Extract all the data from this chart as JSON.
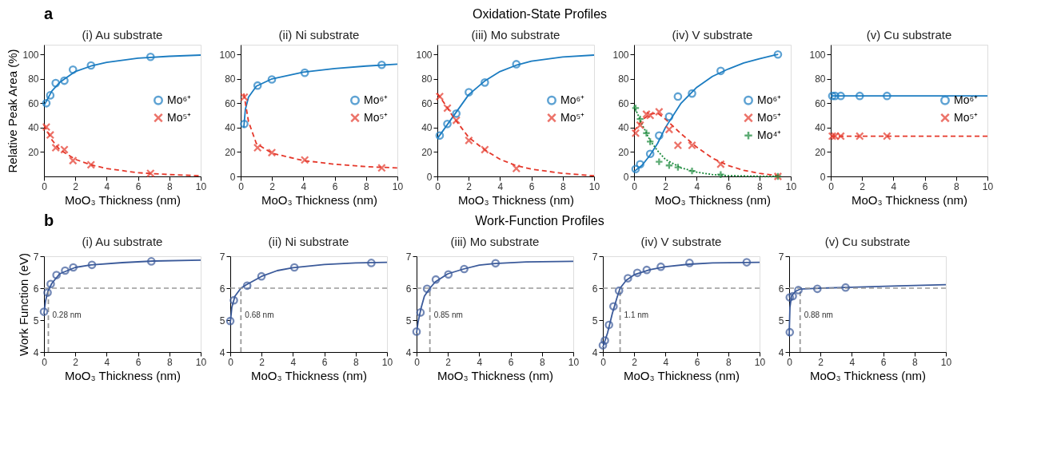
{
  "chart_data": [
    {
      "type": "scatter",
      "title": "(i) Au substrate",
      "xlabel": "MoO₃ Thickness (nm)",
      "ylabel": "Relative Peak Area (%)",
      "annotations": [
        "a",
        "Oxidation-State Profiles"
      ],
      "xlim": [
        0,
        10
      ],
      "ylim": [
        0,
        108
      ],
      "xticks": [
        0,
        2,
        4,
        6,
        8,
        10
      ],
      "yticks": [
        20,
        40,
        60,
        80,
        100
      ],
      "legend": "right",
      "series": [
        {
          "name": "Mo⁶⁺",
          "marker": "circle",
          "color": "#1b7cc1",
          "x": [
            0.15,
            0.4,
            0.75,
            1.3,
            1.85,
            3.0,
            6.8
          ],
          "values": [
            60,
            66.5,
            76.5,
            78.5,
            87.5,
            91,
            98
          ]
        },
        {
          "name": "Mo⁵⁺",
          "marker": "x",
          "color": "#e5382b",
          "x": [
            0.15,
            0.4,
            0.75,
            1.3,
            1.85,
            3.0,
            6.8
          ],
          "values": [
            40.5,
            34,
            23.5,
            22,
            13,
            9.5,
            2.5
          ]
        },
        {
          "type": "line",
          "line_style": "solid",
          "color": "#1b7cc1",
          "x": [
            0,
            0.5,
            1,
            2,
            3,
            4,
            6,
            8,
            10
          ],
          "values": [
            58,
            70,
            77,
            86,
            90.5,
            93.5,
            97,
            98.5,
            99.5
          ]
        },
        {
          "type": "line",
          "line_style": "dashed",
          "color": "#e5382b",
          "x": [
            0,
            0.5,
            1,
            2,
            3,
            4,
            6,
            8,
            10
          ],
          "values": [
            42,
            30,
            22,
            14,
            9.5,
            6.5,
            3,
            1.5,
            0.5
          ]
        }
      ]
    },
    {
      "type": "scatter",
      "title": "(ii) Ni substrate",
      "xlabel": "MoO₃ Thickness (nm)",
      "xlim": [
        0,
        10
      ],
      "ylim": [
        0,
        108
      ],
      "xticks": [
        0,
        2,
        4,
        6,
        8,
        10
      ],
      "yticks": [
        0,
        20,
        40,
        60,
        80,
        100
      ],
      "legend": "right",
      "series": [
        {
          "name": "Mo⁶⁺",
          "marker": "circle",
          "color": "#1b7cc1",
          "x": [
            0.23,
            1.08,
            1.99,
            4.09,
            9.0
          ],
          "values": [
            43,
            74.5,
            79.5,
            85,
            91.5
          ]
        },
        {
          "name": "Mo⁵⁺",
          "marker": "x",
          "color": "#e5382b",
          "x": [
            0.23,
            1.08,
            1.99,
            4.09,
            9.0
          ],
          "values": [
            65,
            23.5,
            19.5,
            13.5,
            7
          ]
        },
        {
          "type": "line",
          "line_style": "solid",
          "color": "#1b7cc1",
          "x": [
            0.2,
            0.3,
            0.5,
            1,
            2,
            4,
            6,
            8,
            10
          ],
          "values": [
            40,
            55,
            65,
            74,
            80,
            85.5,
            88.5,
            90.5,
            92
          ]
        },
        {
          "type": "line",
          "line_style": "dashed",
          "color": "#e5382b",
          "x": [
            0.2,
            0.5,
            1,
            2,
            4,
            6,
            8,
            10
          ],
          "values": [
            68,
            45,
            27,
            19,
            13,
            10,
            8,
            7
          ]
        }
      ]
    },
    {
      "type": "scatter",
      "title": "(iii) Mo substrate",
      "xlabel": "MoO₃ Thickness (nm)",
      "xlim": [
        0,
        10
      ],
      "ylim": [
        0,
        108
      ],
      "xticks": [
        0,
        2,
        4,
        6,
        8,
        10
      ],
      "yticks": [
        0,
        20,
        40,
        60,
        80,
        100
      ],
      "legend": "right",
      "series": [
        {
          "name": "Mo⁶⁺",
          "marker": "circle",
          "color": "#1b7cc1",
          "x": [
            0.15,
            0.64,
            1.21,
            2.01,
            3.03,
            5.04
          ],
          "values": [
            33.5,
            43,
            51.5,
            69,
            77,
            92
          ]
        },
        {
          "name": "Mo⁵⁺",
          "marker": "x",
          "color": "#e5382b",
          "x": [
            0.15,
            0.64,
            1.21,
            2.01,
            3.03,
            5.04
          ],
          "values": [
            65.5,
            56,
            46,
            29.5,
            22,
            6.5
          ]
        },
        {
          "type": "line",
          "line_style": "solid",
          "color": "#1b7cc1",
          "x": [
            0,
            0.5,
            1,
            2,
            3,
            4,
            5,
            6,
            8,
            10
          ],
          "values": [
            31,
            40,
            49,
            67,
            78,
            86,
            91,
            94.5,
            98,
            99.5
          ]
        },
        {
          "type": "line",
          "line_style": "dashed",
          "color": "#e5382b",
          "x": [
            0,
            0.5,
            1,
            2,
            3,
            4,
            5,
            6,
            8,
            10
          ],
          "values": [
            68,
            59,
            49,
            32,
            22,
            14,
            9,
            6,
            2.5,
            0.5
          ]
        }
      ]
    },
    {
      "type": "scatter",
      "title": "(iv) V substrate",
      "xlabel": "MoO₃ Thickness (nm)",
      "xlim": [
        0,
        10
      ],
      "ylim": [
        0,
        108
      ],
      "xticks": [
        0,
        2,
        4,
        6,
        8,
        10
      ],
      "yticks": [
        0,
        20,
        40,
        60,
        80,
        100
      ],
      "legend": "right",
      "series": [
        {
          "name": "Mo⁶⁺",
          "marker": "circle",
          "color": "#1b7cc1",
          "x": [
            0.1,
            0.39,
            1.03,
            1.6,
            2.24,
            2.8,
            3.7,
            5.53,
            9.18
          ],
          "values": [
            6,
            10,
            18.5,
            33.5,
            49,
            65.5,
            68,
            86.5,
            100
          ]
        },
        {
          "name": "Mo⁵⁺",
          "marker": "x",
          "color": "#e5382b",
          "x": [
            0.1,
            0.39,
            0.79,
            1.03,
            1.6,
            2.24,
            2.8,
            3.7,
            5.53,
            9.18
          ],
          "values": [
            35.5,
            42,
            51,
            50,
            53,
            38.5,
            25.5,
            25.5,
            10,
            0
          ]
        },
        {
          "name": "Mo⁴⁺",
          "marker": "cross",
          "color": "#1b8a3c",
          "x": [
            0.1,
            0.39,
            0.79,
            1.03,
            1.6,
            2.24,
            2.8,
            3.7,
            5.53,
            9.18
          ],
          "values": [
            56,
            47,
            35.5,
            28.5,
            12,
            9,
            7.5,
            4.5,
            1.5,
            0
          ]
        },
        {
          "type": "line",
          "line_style": "solid",
          "color": "#1b7cc1",
          "x": [
            0,
            0.5,
            1,
            1.5,
            2,
            3,
            4,
            5,
            6,
            7,
            8,
            9,
            9.2
          ],
          "values": [
            4,
            9,
            17,
            27,
            40,
            60,
            73,
            82,
            88,
            93,
            96.5,
            99.5,
            100
          ]
        },
        {
          "type": "line",
          "line_style": "dashed",
          "color": "#e5382b",
          "x": [
            0,
            0.5,
            1,
            1.5,
            2,
            3,
            4,
            5,
            6,
            7,
            8,
            9.2
          ],
          "values": [
            37,
            46,
            51,
            52,
            47,
            35,
            24,
            15,
            9,
            5,
            2.5,
            0.5
          ]
        },
        {
          "type": "line",
          "line_style": "dotted",
          "color": "#1b8a3c",
          "x": [
            0,
            0.5,
            1,
            1.5,
            2,
            3,
            4,
            5,
            6,
            8,
            9.2
          ],
          "values": [
            58,
            43,
            30,
            21,
            14,
            7,
            3.5,
            1.5,
            0.6,
            0.1,
            0
          ]
        }
      ]
    },
    {
      "type": "scatter",
      "title": "(v) Cu substrate",
      "xlabel": "MoO₃ Thickness (nm)",
      "xlim": [
        0,
        10
      ],
      "ylim": [
        0,
        108
      ],
      "xticks": [
        0,
        2,
        4,
        6,
        8,
        10
      ],
      "yticks": [
        0,
        20,
        40,
        60,
        80,
        100
      ],
      "legend": "right",
      "series": [
        {
          "name": "Mo⁶⁺",
          "marker": "circle",
          "color": "#1b7cc1",
          "x": [
            0.1,
            0.28,
            0.64,
            1.85,
            3.59
          ],
          "values": [
            66,
            66,
            66,
            66,
            66
          ]
        },
        {
          "name": "Mo⁵⁺",
          "marker": "x",
          "color": "#e5382b",
          "x": [
            0.1,
            0.28,
            0.64,
            1.85,
            3.59
          ],
          "values": [
            33,
            33,
            33,
            33,
            33
          ]
        },
        {
          "type": "line",
          "line_style": "solid",
          "color": "#1b7cc1",
          "x": [
            0,
            10
          ],
          "values": [
            66,
            66
          ]
        },
        {
          "type": "line",
          "line_style": "dashed",
          "color": "#e5382b",
          "x": [
            0,
            10
          ],
          "values": [
            33,
            33
          ]
        }
      ]
    },
    {
      "type": "scatter",
      "title": "(i) Au substrate",
      "xlabel": "MoO₃ Thickness (nm)",
      "ylabel": "Work Function (eV)",
      "annotations": [
        "b",
        "Work-Function Profiles",
        "0.28 nm"
      ],
      "xlim": [
        0,
        10
      ],
      "ylim": [
        4,
        7
      ],
      "xticks": [
        0,
        2,
        4,
        6,
        8,
        10
      ],
      "yticks": [
        4,
        5,
        6,
        7
      ],
      "ref_lines": [
        {
          "axis": "y",
          "value": 6,
          "color": "#999999",
          "line_style": "dashed"
        }
      ],
      "series": [
        {
          "marker": "circle",
          "color": "#3b5a9a",
          "x": [
            0,
            0.23,
            0.43,
            0.8,
            1.35,
            1.87,
            3.06,
            6.85
          ],
          "values": [
            5.26,
            5.86,
            6.13,
            6.41,
            6.55,
            6.65,
            6.73,
            6.84
          ]
        },
        {
          "type": "line",
          "line_style": "solid",
          "color": "#3b5a9a",
          "x": [
            0,
            0.1,
            0.25,
            0.5,
            1,
            2,
            3,
            5,
            7,
            10
          ],
          "values": [
            5.2,
            5.6,
            5.9,
            6.15,
            6.45,
            6.65,
            6.73,
            6.8,
            6.85,
            6.88
          ]
        },
        {
          "type": "line",
          "line_style": "dashed",
          "color": "#999999",
          "x": [
            0.28,
            0.28
          ],
          "values": [
            4,
            6
          ]
        }
      ]
    },
    {
      "type": "scatter",
      "title": "(ii) Ni substrate",
      "xlabel": "MoO₃ Thickness (nm)",
      "annotations": [
        "0.68 nm"
      ],
      "xlim": [
        0,
        10
      ],
      "ylim": [
        4,
        7
      ],
      "xticks": [
        0,
        2,
        4,
        6,
        8,
        10
      ],
      "yticks": [
        4,
        5,
        6,
        7
      ],
      "ref_lines": [
        {
          "axis": "y",
          "value": 6,
          "color": "#999999",
          "line_style": "dashed"
        }
      ],
      "series": [
        {
          "marker": "circle",
          "color": "#3b5a9a",
          "x": [
            0,
            0.23,
            1.08,
            1.99,
            4.09,
            9.0
          ],
          "values": [
            4.97,
            5.62,
            6.08,
            6.37,
            6.65,
            6.79
          ]
        },
        {
          "type": "line",
          "line_style": "solid",
          "color": "#3b5a9a",
          "x": [
            0,
            0.1,
            0.3,
            0.68,
            1,
            2,
            3,
            4,
            6,
            8,
            10
          ],
          "values": [
            4.9,
            5.4,
            5.75,
            6.0,
            6.1,
            6.37,
            6.55,
            6.64,
            6.74,
            6.79,
            6.81
          ]
        },
        {
          "type": "line",
          "line_style": "dashed",
          "color": "#999999",
          "x": [
            0.68,
            0.68
          ],
          "values": [
            4,
            6
          ]
        }
      ]
    },
    {
      "type": "scatter",
      "title": "(iii) Mo substrate",
      "xlabel": "MoO₃ Thickness (nm)",
      "annotations": [
        "0.85 nm"
      ],
      "xlim": [
        0,
        10
      ],
      "ylim": [
        4,
        7
      ],
      "xticks": [
        0,
        2,
        4,
        6,
        8,
        10
      ],
      "yticks": [
        4,
        5,
        6,
        7
      ],
      "ref_lines": [
        {
          "axis": "y",
          "value": 6,
          "color": "#999999",
          "line_style": "dashed"
        }
      ],
      "series": [
        {
          "marker": "circle",
          "color": "#3b5a9a",
          "x": [
            0,
            0.25,
            0.67,
            1.23,
            2.03,
            3.04,
            5.04
          ],
          "values": [
            4.64,
            5.24,
            5.98,
            6.27,
            6.43,
            6.6,
            6.78
          ]
        },
        {
          "type": "line",
          "line_style": "solid",
          "color": "#3b5a9a",
          "x": [
            0,
            0.1,
            0.3,
            0.5,
            0.85,
            1.2,
            2,
            3,
            4,
            5,
            7,
            10
          ],
          "values": [
            4.6,
            4.95,
            5.4,
            5.75,
            6.0,
            6.2,
            6.45,
            6.6,
            6.72,
            6.77,
            6.82,
            6.84
          ]
        },
        {
          "type": "line",
          "line_style": "dashed",
          "color": "#999999",
          "x": [
            0.85,
            0.85
          ],
          "values": [
            4,
            6
          ]
        }
      ]
    },
    {
      "type": "scatter",
      "title": "(iv) V substrate",
      "xlabel": "MoO₃ Thickness (nm)",
      "annotations": [
        "1.1 nm"
      ],
      "xlim": [
        0,
        10
      ],
      "ylim": [
        4,
        7
      ],
      "xticks": [
        0,
        2,
        4,
        6,
        8,
        10
      ],
      "yticks": [
        4,
        5,
        6,
        7
      ],
      "ref_lines": [
        {
          "axis": "y",
          "value": 6,
          "color": "#999999",
          "line_style": "dashed"
        }
      ],
      "series": [
        {
          "marker": "circle",
          "color": "#3b5a9a",
          "x": [
            0,
            0.13,
            0.39,
            0.68,
            1.03,
            1.6,
            2.2,
            2.8,
            3.7,
            5.53,
            9.18
          ],
          "values": [
            4.21,
            4.36,
            4.85,
            5.43,
            5.92,
            6.31,
            6.48,
            6.57,
            6.67,
            6.79,
            6.81
          ]
        },
        {
          "type": "line",
          "line_style": "solid",
          "color": "#3b5a9a",
          "x": [
            0,
            0.3,
            0.6,
            0.9,
            1.1,
            1.5,
            2,
            3,
            4,
            5.5,
            7,
            10
          ],
          "values": [
            4.15,
            4.6,
            5.2,
            5.7,
            6.0,
            6.25,
            6.42,
            6.58,
            6.67,
            6.75,
            6.79,
            6.81
          ]
        },
        {
          "type": "line",
          "line_style": "dashed",
          "color": "#999999",
          "x": [
            1.1,
            1.1
          ],
          "values": [
            4,
            6
          ]
        }
      ]
    },
    {
      "type": "scatter",
      "title": "(v) Cu substrate",
      "xlabel": "MoO₃ Thickness (nm)",
      "annotations": [
        "0.88 nm"
      ],
      "xlim": [
        0,
        10
      ],
      "ylim": [
        4,
        7
      ],
      "xticks": [
        0,
        2,
        4,
        6,
        8,
        10
      ],
      "yticks": [
        4,
        5,
        6,
        7
      ],
      "ref_lines": [
        {
          "axis": "y",
          "value": 6,
          "color": "#999999",
          "line_style": "dashed"
        }
      ],
      "series": [
        {
          "marker": "circle",
          "color": "#3b5a9a",
          "x": [
            0.04,
            0.04,
            0.23,
            0.59,
            1.8,
            3.6
          ],
          "values": [
            4.62,
            5.71,
            5.75,
            5.94,
            5.98,
            6.02
          ]
        },
        {
          "type": "line",
          "line_style": "solid",
          "color": "#3b5a9a",
          "x": [
            0,
            0.05,
            0.15,
            0.4,
            0.7,
            2,
            4,
            7,
            10
          ],
          "values": [
            4.5,
            5.4,
            5.75,
            5.9,
            5.97,
            6.0,
            6.03,
            6.07,
            6.11
          ]
        },
        {
          "type": "line",
          "line_style": "dashed",
          "color": "#999999",
          "x": [
            0.7,
            0.7
          ],
          "values": [
            4,
            6
          ]
        }
      ]
    }
  ]
}
